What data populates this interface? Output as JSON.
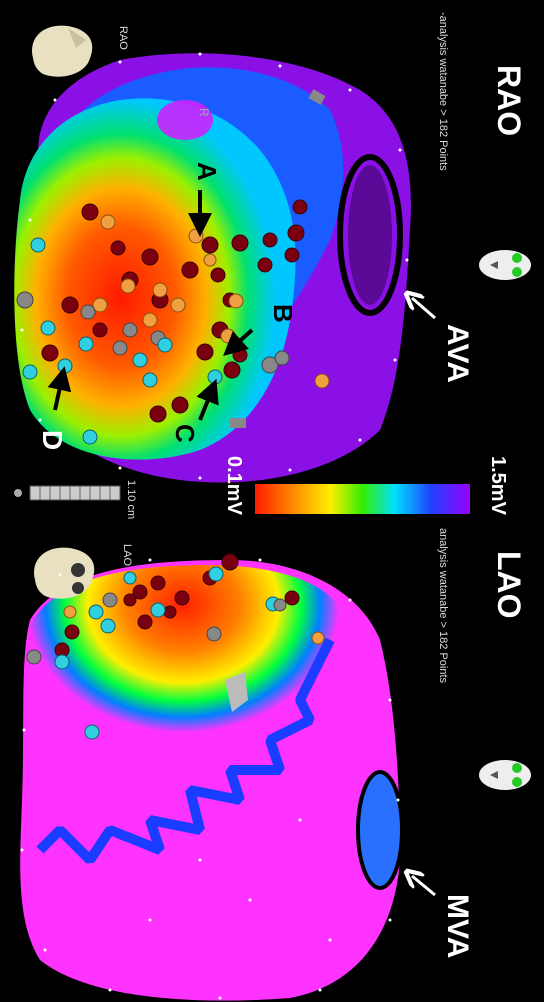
{
  "views": {
    "rao": {
      "title": "RAO",
      "orientation": "RAO",
      "info": "-analysis watanabe > 182 Points",
      "valve_label": "AVA",
      "point_labels": [
        "A",
        "B",
        "C",
        "D"
      ],
      "marker": "R"
    },
    "lao": {
      "title": "LAO",
      "orientation": "LAO",
      "info": "analysis watanabe > 182 Points",
      "valve_label": "MVA"
    }
  },
  "colorbar": {
    "max_label": "1.5mV",
    "min_label": "0.1mV",
    "colors": [
      "#ff2a00",
      "#ff8c00",
      "#ffee00",
      "#33ee00",
      "#00e0ff",
      "#2040ff",
      "#8800ff"
    ]
  },
  "scale_label": "1.10 cm",
  "icons": {
    "skull": "skull-icon",
    "face": "orientation-face-icon"
  }
}
